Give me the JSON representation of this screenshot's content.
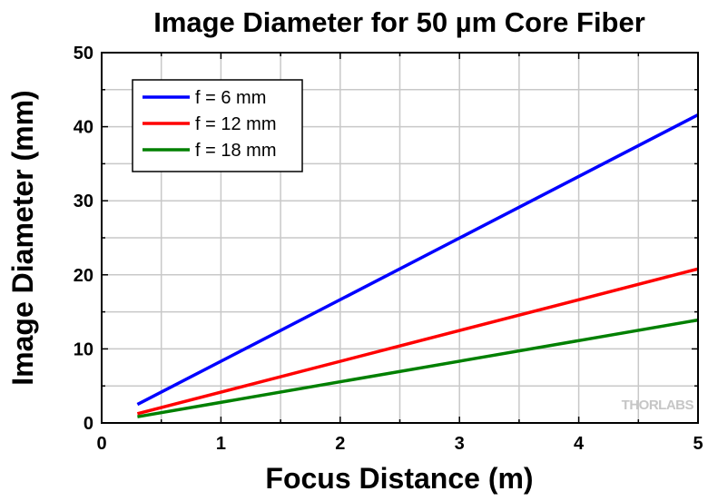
{
  "chart_data": {
    "type": "line",
    "title": "Image Diameter for 50 µm Core Fiber",
    "xlabel": "Focus Distance (m)",
    "ylabel": "Image Diameter (mm)",
    "xlim": [
      0,
      5
    ],
    "ylim": [
      0,
      50
    ],
    "xticks": [
      "0",
      "1",
      "2",
      "3",
      "4",
      "5"
    ],
    "yticks": [
      "0",
      "10",
      "20",
      "30",
      "40",
      "50"
    ],
    "grid": true,
    "legend_position": "top-left",
    "series": [
      {
        "name": "f = 6 mm",
        "color": "#0000ff",
        "x": [
          0.3,
          5
        ],
        "y": [
          2.5,
          41.6
        ]
      },
      {
        "name": "f = 12 mm",
        "color": "#ff0000",
        "x": [
          0.3,
          5
        ],
        "y": [
          1.25,
          20.8
        ]
      },
      {
        "name": "f = 18 mm",
        "color": "#008000",
        "x": [
          0.3,
          5
        ],
        "y": [
          0.83,
          13.9
        ]
      }
    ]
  },
  "watermark": {
    "text": "THORLABS"
  }
}
